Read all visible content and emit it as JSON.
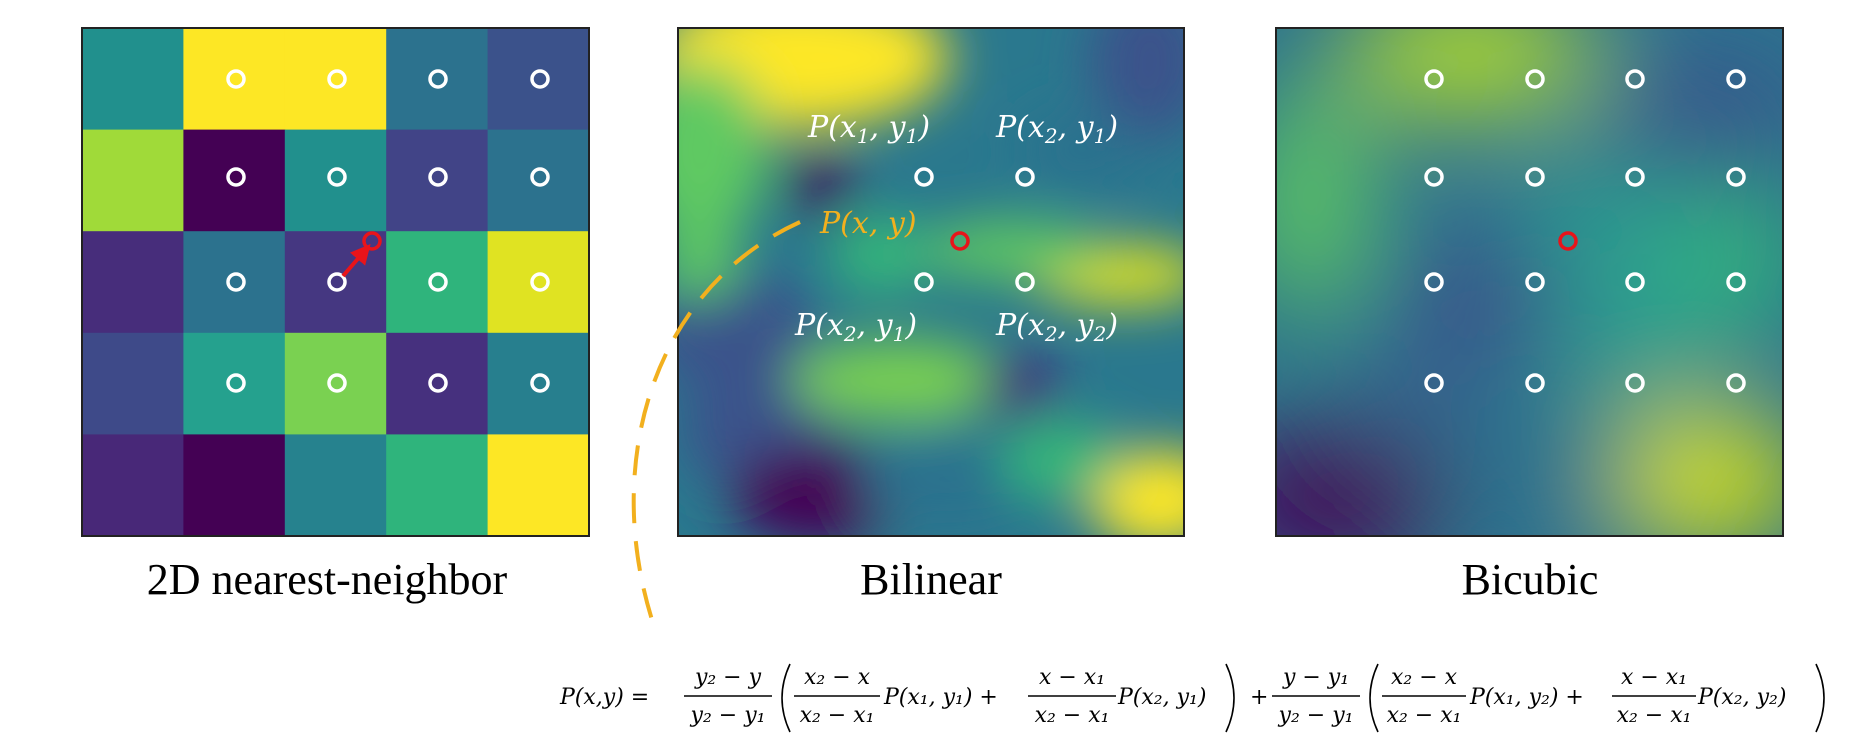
{
  "panels": [
    {
      "id": "nearest",
      "caption": "2D nearest-neighbor",
      "grid": [
        [
          "#21908d",
          "#fde725",
          "#fde725",
          "#2c728e",
          "#3b528b"
        ],
        [
          "#a0da39",
          "#440154",
          "#21908d",
          "#414487",
          "#2c728e"
        ],
        [
          "#472d7b",
          "#2c728e",
          "#453781",
          "#2fb47c",
          "#e0e322"
        ],
        [
          "#3e4a89",
          "#25a18e",
          "#7ad151",
          "#46307e",
          "#277f8e"
        ],
        [
          "#482878",
          "#440154",
          "#26828e",
          "#2fb47c",
          "#fde725"
        ]
      ]
    },
    {
      "id": "bilinear",
      "caption": "Bilinear",
      "labels": {
        "p11": [
          "P(x",
          "1",
          ", y",
          "1",
          ")"
        ],
        "p21": [
          "P(x",
          "2",
          ", y",
          "1",
          ")"
        ],
        "pxy": "P(x, y)",
        "p21b": [
          "P(x",
          "2",
          ", y",
          "1",
          ")"
        ],
        "p22": [
          "P(x",
          "2",
          ", y",
          "2",
          ")"
        ]
      }
    },
    {
      "id": "bicubic",
      "caption": "Bicubic"
    }
  ],
  "colors": {
    "point_marker": "#ffffff",
    "query_marker": "#e8141a",
    "arrow": "#e8141a",
    "dashed_arc": "#f2b01e",
    "frame": "#222222"
  },
  "equation": {
    "lhs": "P(x,y) =",
    "term1_num": "y₂ − y",
    "term1_den": "y₂ − y₁",
    "a_num": "x₂ − x",
    "a_den": "x₂ − x₁",
    "a_p": "P(x₁, y₁) +",
    "b_num": "x − x₁",
    "b_den": "x₂ − x₁",
    "b_p": "P(x₂, y₁)",
    "plus": "+",
    "term2_num": "y − y₁",
    "term2_den": "y₂ − y₁",
    "c_num": "x₂ − x",
    "c_den": "x₂ − x₁",
    "c_p": "P(x₁, y₂) +",
    "d_num": "x − x₁",
    "d_den": "x₂ − x₁",
    "d_p": "P(x₂, y₂)"
  }
}
